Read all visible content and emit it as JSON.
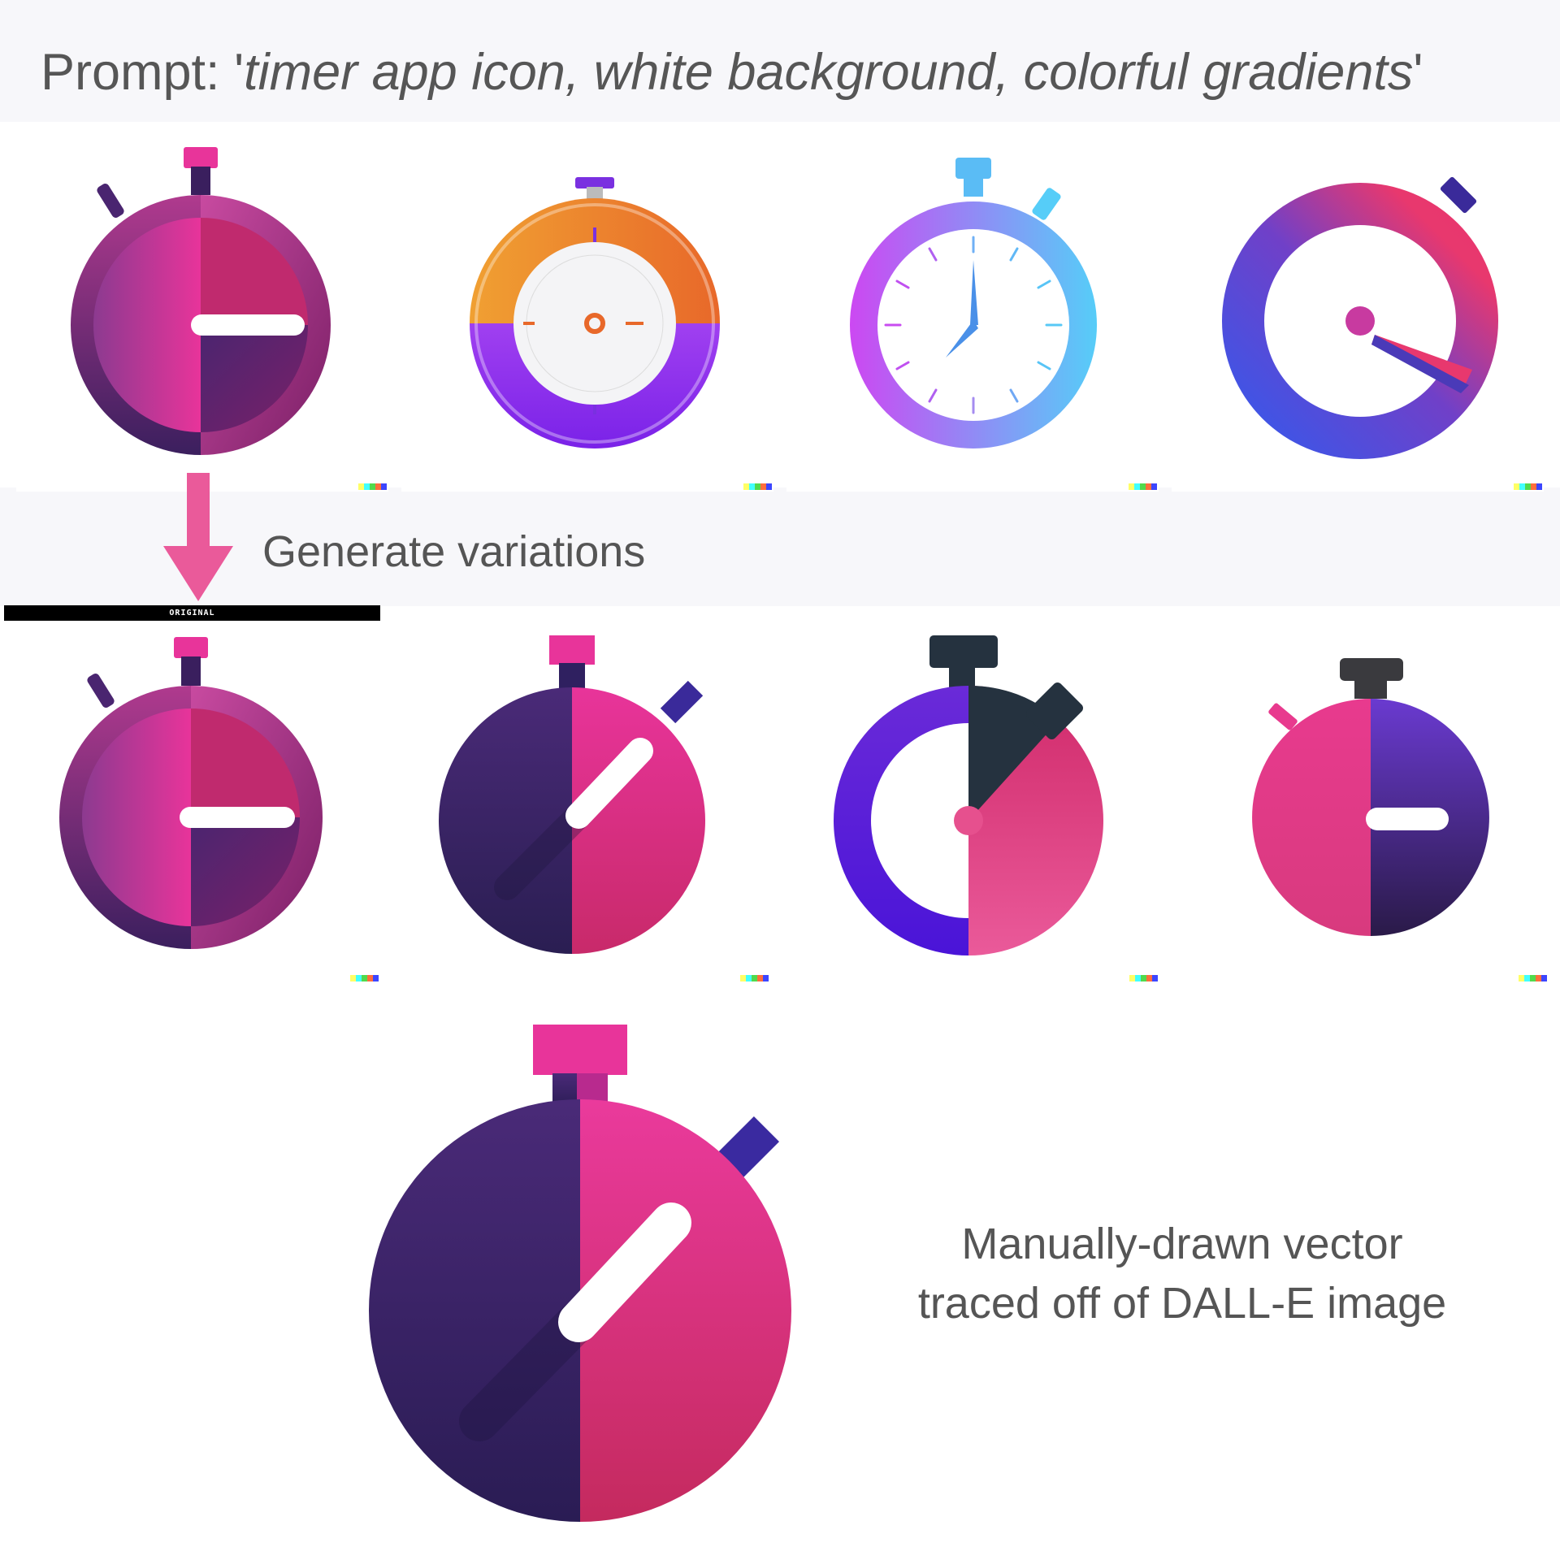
{
  "header": {
    "prefix": "Prompt: '",
    "prompt_text": "timer app icon, white background, colorful gradients",
    "suffix": "'"
  },
  "step": {
    "label": "Generate variations",
    "arrow_color": "#ea5a9a"
  },
  "variation_set": {
    "original_label": "ORIGINAL"
  },
  "final": {
    "caption_line1": "Manually-drawn vector",
    "caption_line2": "traced off of DALL-E image"
  },
  "tiles": [
    {
      "row": 1,
      "index": 1,
      "icon": "split-stopwatch-pink-purple-icon"
    },
    {
      "row": 1,
      "index": 2,
      "icon": "orange-purple-glossy-stopwatch-icon"
    },
    {
      "row": 1,
      "index": 3,
      "icon": "purple-blue-clock-face-stopwatch-icon"
    },
    {
      "row": 1,
      "index": 4,
      "icon": "blue-pink-ring-timer-icon"
    },
    {
      "row": 2,
      "index": 1,
      "icon": "split-stopwatch-pink-purple-icon"
    },
    {
      "row": 2,
      "index": 2,
      "icon": "dark-purple-pink-diagonal-hand-stopwatch-icon"
    },
    {
      "row": 2,
      "index": 3,
      "icon": "purple-ring-pink-half-stopwatch-icon"
    },
    {
      "row": 2,
      "index": 4,
      "icon": "pink-purple-small-stopwatch-icon"
    }
  ],
  "colors": {
    "pink": "#e8349a",
    "deep_purple": "#2d1f58",
    "violet": "#6a3fd0",
    "text_gray": "#555555"
  }
}
